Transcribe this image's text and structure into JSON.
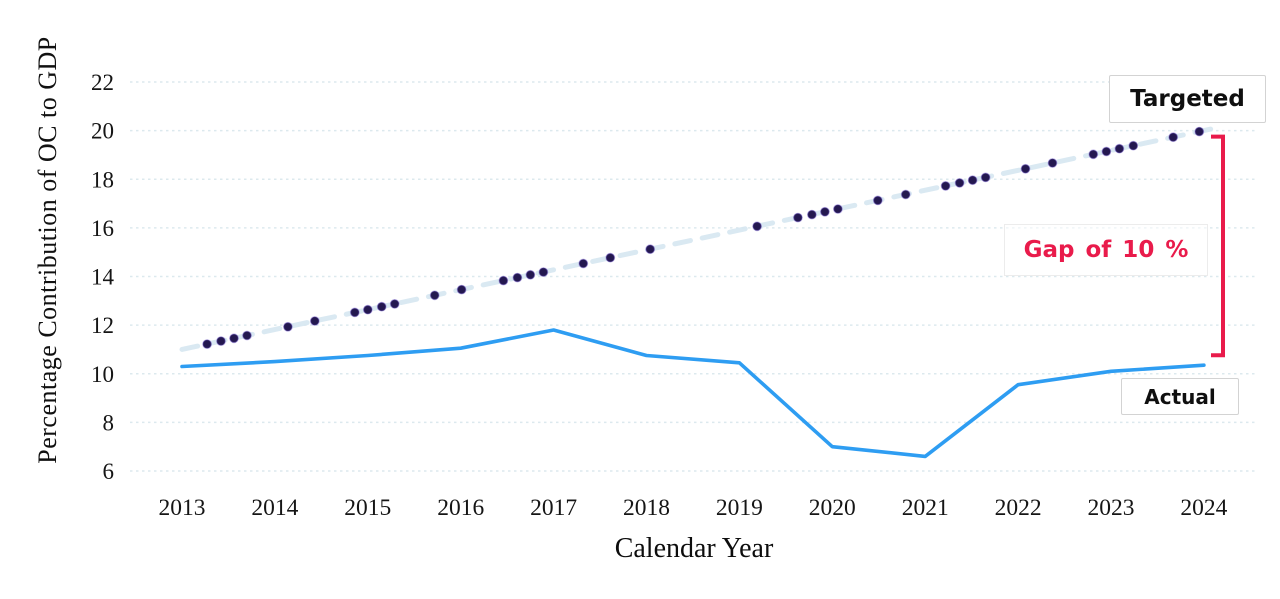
{
  "figure": {
    "y_axis_title": "Percentage Contribution of OC to GDP",
    "x_axis_title": "Calendar Year",
    "targeted_label": "Targeted",
    "actual_label": "Actual",
    "gap_label": "Gap of 10 %"
  },
  "colors": {
    "actual_line": "#2e9df2",
    "targeted_dot": "#241850",
    "targeted_dot_halo": "#7b63cf",
    "trend_line": "#d7e7f1",
    "gap_red": "#e91b4b",
    "gridline": "#dbe8ee",
    "tick_text": "#151515"
  },
  "chart_data": {
    "type": "line",
    "title": "",
    "xlabel": "Calendar Year",
    "ylabel": "Percentage Contribution of OC to GDP",
    "x": [
      2013,
      2014,
      2015,
      2016,
      2017,
      2018,
      2019,
      2020,
      2021,
      2022,
      2023,
      2024
    ],
    "y_ticks": [
      6,
      8,
      10,
      12,
      14,
      16,
      18,
      20,
      22
    ],
    "ylim": [
      6,
      22
    ],
    "grid": true,
    "series": [
      {
        "name": "Targeted",
        "style": "dotted",
        "values": [
          11.0,
          11.8,
          12.6,
          13.5,
          14.3,
          15.1,
          15.9,
          16.7,
          17.5,
          18.4,
          19.2,
          20.0
        ]
      },
      {
        "name": "Actual",
        "style": "solid",
        "values": [
          10.3,
          10.5,
          10.75,
          11.05,
          11.8,
          10.75,
          10.45,
          7.0,
          6.6,
          9.55,
          10.1,
          10.35
        ]
      }
    ],
    "targeted_dot_years": [
      2013.27,
      2013.42,
      2013.56,
      2013.7,
      2014.14,
      2014.43,
      2014.86,
      2015.0,
      2015.15,
      2015.29,
      2015.72,
      2016.01,
      2016.46,
      2016.61,
      2016.75,
      2016.89,
      2017.32,
      2017.61,
      2018.04,
      2019.19,
      2019.63,
      2019.78,
      2019.92,
      2020.06,
      2020.49,
      2020.79,
      2021.22,
      2021.37,
      2021.51,
      2021.65,
      2022.08,
      2022.37,
      2022.81,
      2022.95,
      2023.09,
      2023.24,
      2023.67,
      2023.95
    ],
    "annotations": [
      {
        "text": "Gap of 10 %",
        "type": "bracket",
        "at_x": 2024,
        "from_value": 10.35,
        "to_value": 20.0
      }
    ],
    "legend": "boxed-inline-labels"
  }
}
